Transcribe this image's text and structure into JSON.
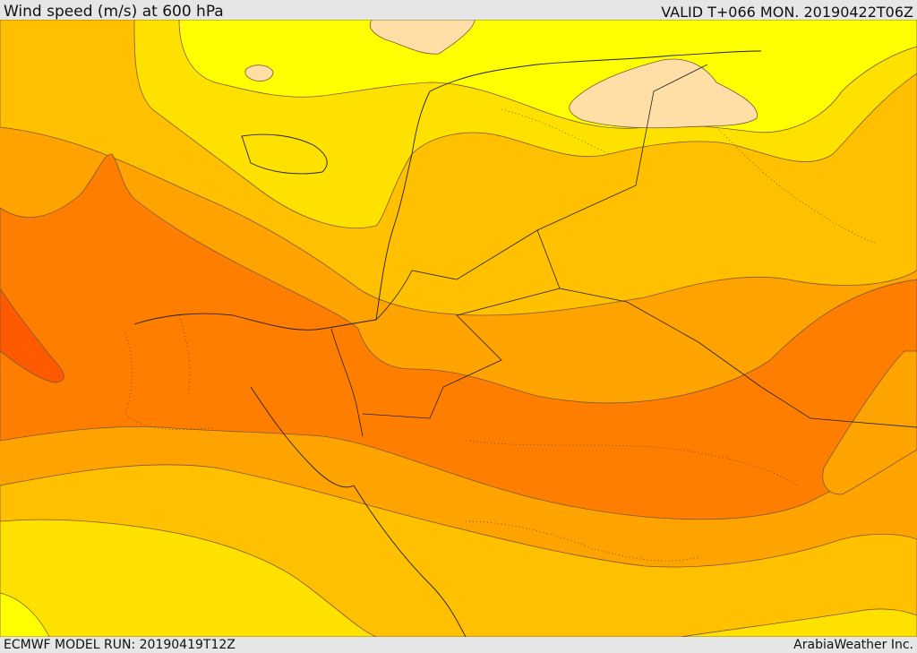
{
  "header": {
    "title": "Wind speed (m/s) at 600 hPa",
    "valid": "VALID T+066 MON. 20190422T06Z"
  },
  "footer": {
    "model_run": "ECMWF MODEL RUN: 20190419T12Z",
    "credit": "ArabiaWeather Inc."
  },
  "map": {
    "variable": "wind speed",
    "units": "m/s",
    "level": "600 hPa",
    "palette": {
      "very_low": "#ffdfa6",
      "low": "#ffff00",
      "moderate_low": "#ffe100",
      "moderate": "#ffc000",
      "moderate_high": "#ffa300",
      "high": "#ff7e00",
      "very_high": "#ff5a00"
    }
  }
}
